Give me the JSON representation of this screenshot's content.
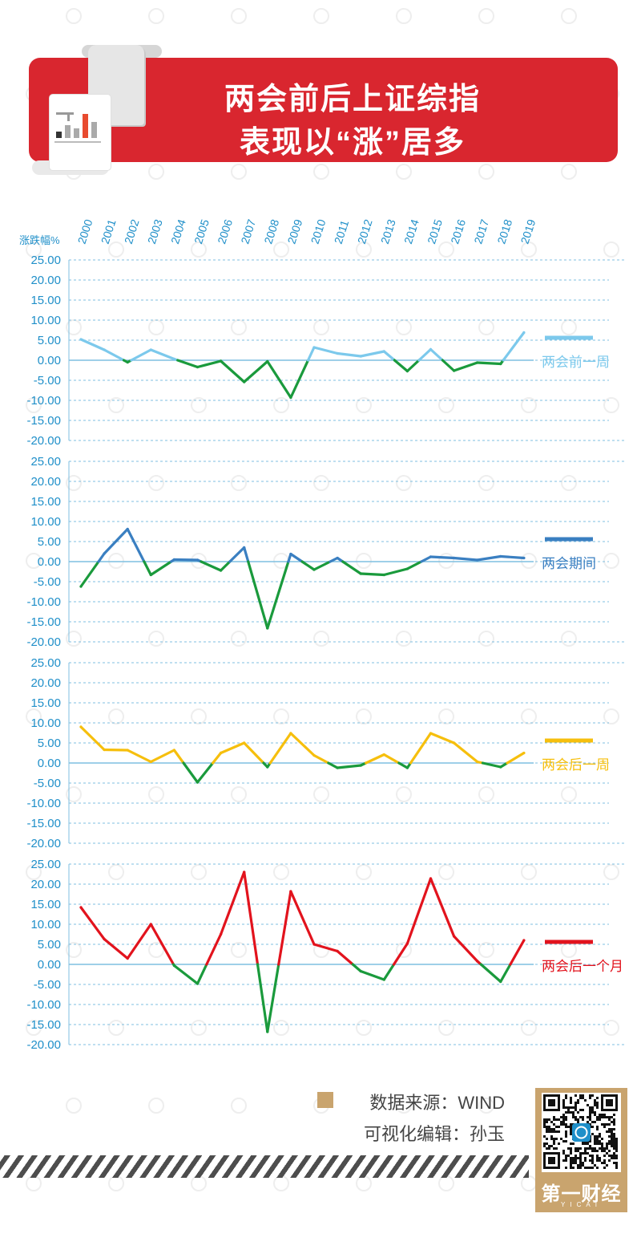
{
  "title_lines": [
    "两会前后上证综指",
    "表现以“涨”居多"
  ],
  "colors": {
    "banner": "#d9262f",
    "axis_text": "#1f8fc9",
    "grid": "#7fbfe0",
    "negative_line": "#1a9a3c"
  },
  "chart_data": {
    "type": "line",
    "ylabel": "涨跌幅%",
    "categories": [
      "2000",
      "2001",
      "2002",
      "2003",
      "2004",
      "2005",
      "2006",
      "2007",
      "2008",
      "2009",
      "2010",
      "2011",
      "2012",
      "2013",
      "2014",
      "2015",
      "2016",
      "2017",
      "2018",
      "2019"
    ],
    "ylim": [
      -20,
      25
    ],
    "y_ticks": [
      "25.00",
      "20.00",
      "15.00",
      "10.00",
      "5.00",
      "0.00",
      "-5.00",
      "-10.00",
      "-15.00",
      "-20.00"
    ],
    "negative_color": "#1a9a3c",
    "series": [
      {
        "name": "两会前一周",
        "color": "#7cc9ec",
        "values": [
          5.2,
          2.6,
          -0.5,
          2.6,
          0.3,
          -1.7,
          -0.2,
          -5.4,
          -0.3,
          -9.3,
          3.2,
          1.7,
          1.0,
          2.2,
          -2.7,
          2.7,
          -2.6,
          -0.6,
          -0.9,
          6.9
        ]
      },
      {
        "name": "两会期间",
        "color": "#3a7fc1",
        "values": [
          -6.2,
          2.0,
          8.1,
          -3.3,
          0.5,
          0.4,
          -2.2,
          3.5,
          -16.6,
          1.9,
          -2.0,
          0.9,
          -3.0,
          -3.3,
          -1.8,
          1.2,
          0.9,
          0.4,
          1.3,
          0.9
        ]
      },
      {
        "name": "两会后一周",
        "color": "#f6bf0d",
        "values": [
          9.0,
          3.3,
          3.2,
          0.3,
          3.2,
          -4.8,
          2.5,
          5.0,
          -1.0,
          7.4,
          1.9,
          -1.2,
          -0.6,
          2.1,
          -1.2,
          7.4,
          5.0,
          0.3,
          -1.0,
          2.5
        ]
      },
      {
        "name": "两会后一个月",
        "color": "#e2131d",
        "values": [
          14.2,
          6.3,
          1.5,
          10.0,
          -0.3,
          -4.8,
          7.5,
          23.0,
          -16.8,
          18.2,
          5.0,
          3.3,
          -1.7,
          -3.8,
          5.2,
          21.4,
          7.0,
          0.8,
          -4.3,
          6.0
        ]
      }
    ]
  },
  "footer": {
    "source": "数据来源：WIND",
    "editor": "可视化编辑：孙玉",
    "brand": "第一财经",
    "brand_sub": "YICAI"
  }
}
